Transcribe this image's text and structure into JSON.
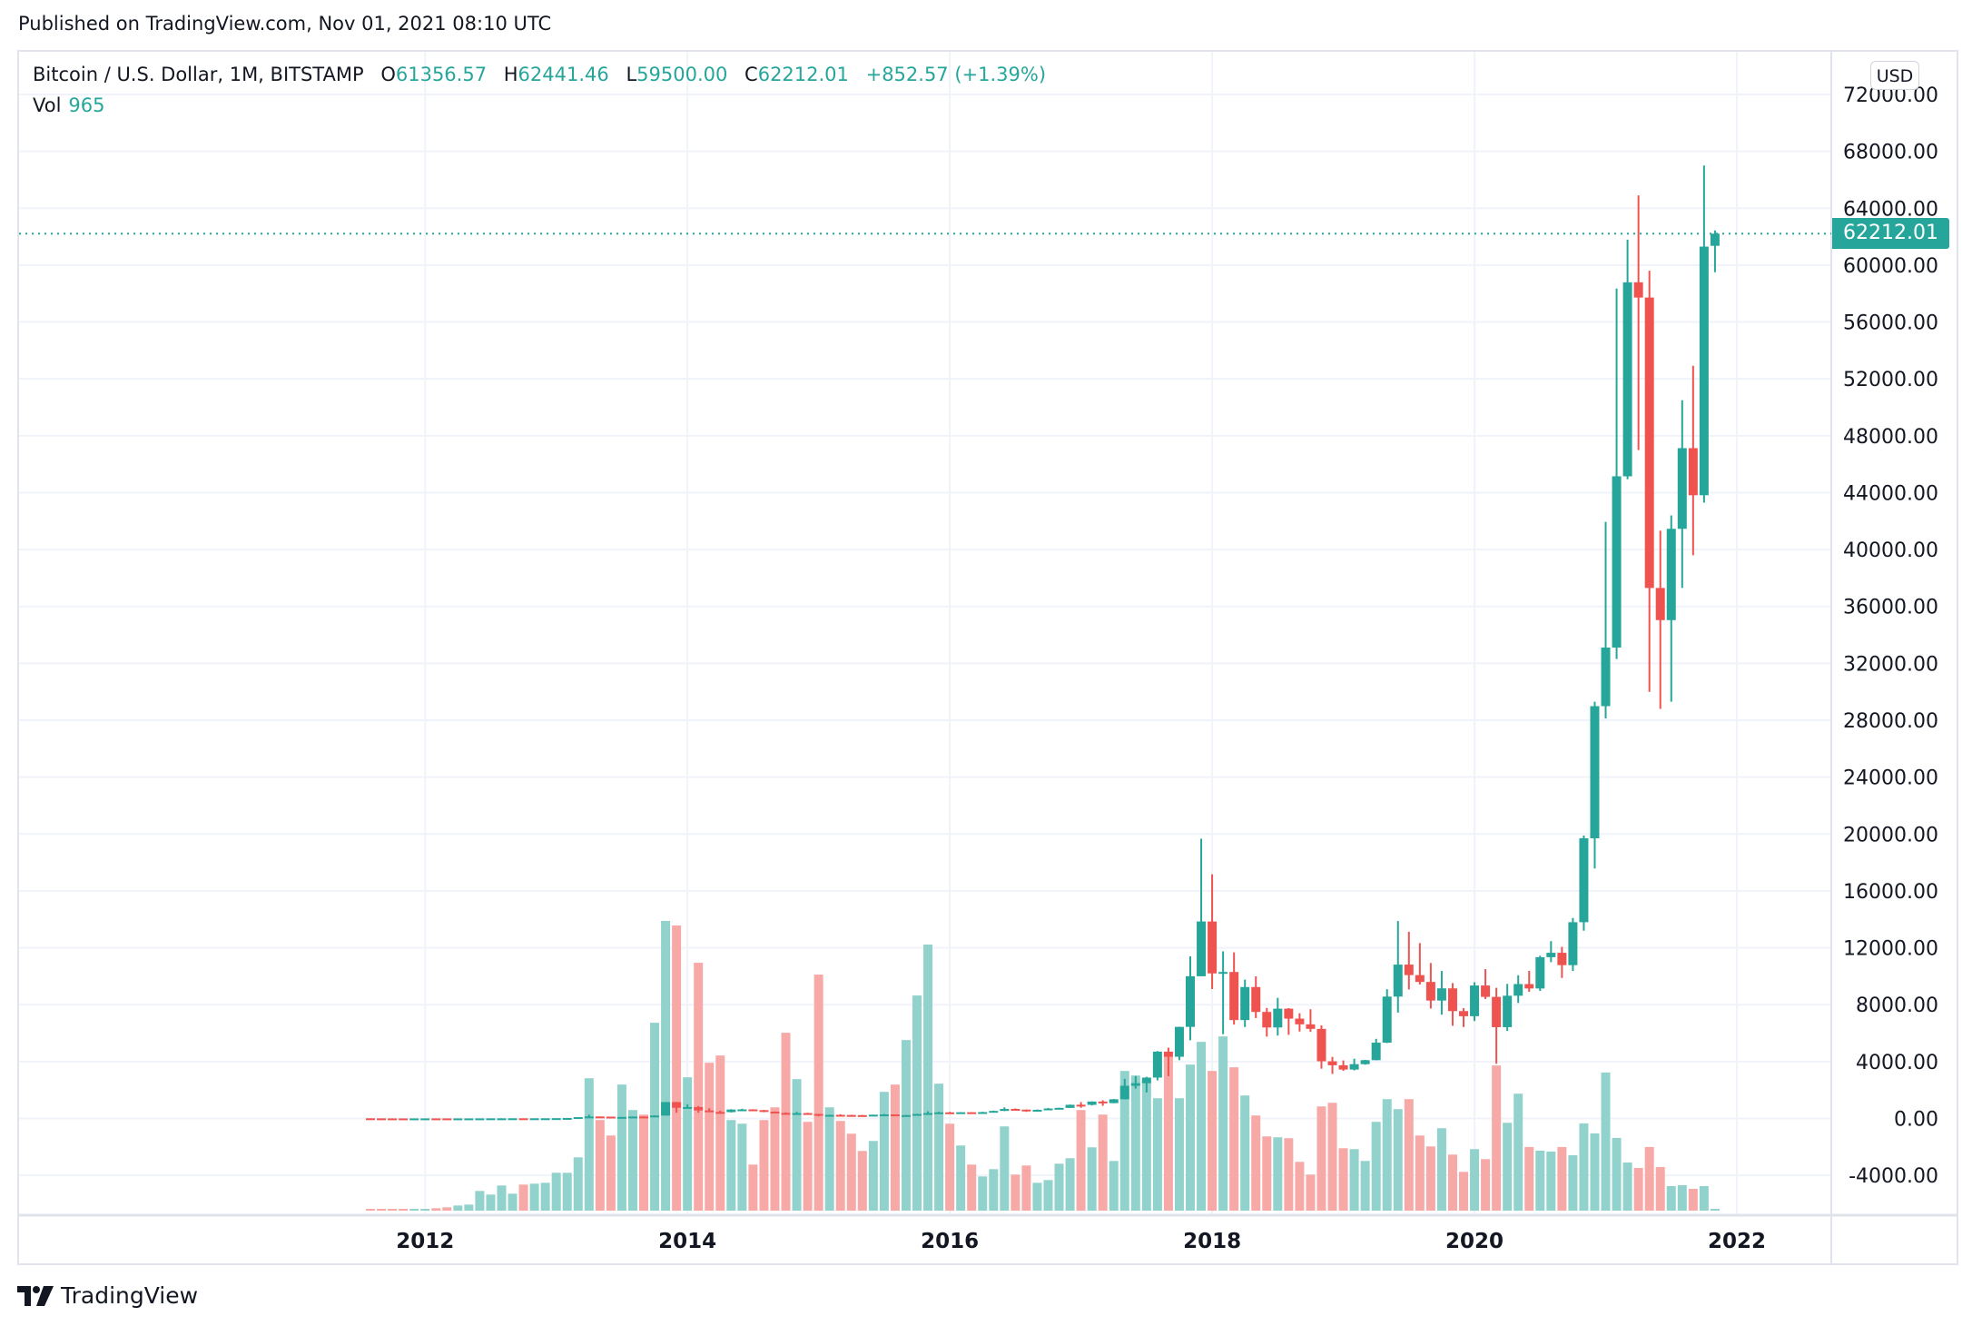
{
  "header": {
    "published": "Published on TradingView.com, Nov 01, 2021 08:10 UTC"
  },
  "legend": {
    "symbol": "Bitcoin / U.S. Dollar, 1M, BITSTAMP",
    "o_label": "O",
    "o": "61356.57",
    "h_label": "H",
    "h": "62441.46",
    "l_label": "L",
    "l": "59500.00",
    "c_label": "C",
    "c": "62212.01",
    "change": "+852.57 (+1.39%)",
    "vol_label": "Vol",
    "vol": "965"
  },
  "currency_button": "USD",
  "last_price_tag": "62212.01",
  "brand": "TradingView",
  "colors": {
    "up": "#26a69a",
    "down": "#ef5350",
    "up_volume": "#92d2cc",
    "down_volume": "#f7a9a7",
    "grid": "#f0f3fa"
  },
  "chart_data": {
    "type": "candlestick",
    "interval": "1M",
    "y_ticks": [
      "-4000.00",
      "0.00",
      "4000.00",
      "8000.00",
      "12000.00",
      "16000.00",
      "20000.00",
      "24000.00",
      "28000.00",
      "32000.00",
      "36000.00",
      "40000.00",
      "44000.00",
      "48000.00",
      "52000.00",
      "56000.00",
      "60000.00",
      "64000.00",
      "68000.00",
      "72000.00"
    ],
    "ylim": [
      -5000,
      72000
    ],
    "x_ticks": [
      "2012",
      "2014",
      "2016",
      "2018",
      "2020",
      "2022"
    ],
    "grid": true,
    "last_price": 62212.01,
    "candles": [
      [
        "2011-08",
        13.5,
        13.9,
        7.5,
        8.2,
        800
      ],
      [
        "2011-09",
        8.2,
        8.5,
        4.6,
        5.1,
        800
      ],
      [
        "2011-10",
        5.1,
        5.2,
        2.3,
        3.3,
        800
      ],
      [
        "2011-11",
        3.3,
        3.8,
        2.0,
        3.0,
        800
      ],
      [
        "2011-12",
        3.0,
        4.8,
        2.9,
        4.7,
        800
      ],
      [
        "2012-01",
        4.7,
        7.4,
        4.6,
        5.5,
        800
      ],
      [
        "2012-02",
        5.5,
        6.2,
        3.9,
        4.95,
        1280
      ],
      [
        "2012-03",
        4.95,
        5.4,
        4.6,
        4.88,
        1760
      ],
      [
        "2012-04",
        4.88,
        5.3,
        4.8,
        5.0,
        2720
      ],
      [
        "2012-05",
        5.0,
        5.3,
        4.9,
        5.2,
        3200
      ],
      [
        "2012-06",
        5.2,
        6.7,
        5.2,
        6.6,
        10400
      ],
      [
        "2012-07",
        6.6,
        9.6,
        6.5,
        9.3,
        8480
      ],
      [
        "2012-08",
        9.3,
        15.4,
        7.1,
        10.2,
        13280
      ],
      [
        "2012-09",
        10.2,
        12.9,
        9.9,
        12.4,
        8960
      ],
      [
        "2012-10",
        12.4,
        12.9,
        9.9,
        11.2,
        13760
      ],
      [
        "2012-11",
        11.2,
        12.6,
        10.2,
        12.6,
        14240
      ],
      [
        "2012-12",
        12.6,
        14.0,
        12.4,
        13.5,
        14720
      ],
      [
        "2013-01",
        13.5,
        21.0,
        13.1,
        20.4,
        20000
      ],
      [
        "2013-02",
        20.4,
        33.8,
        19.5,
        33.4,
        20000
      ],
      [
        "2013-03",
        33.4,
        94.7,
        33.0,
        93.0,
        28160
      ],
      [
        "2013-04",
        93,
        266,
        50,
        139,
        69920
      ],
      [
        "2013-05",
        139,
        139.8,
        79,
        128,
        47840
      ],
      [
        "2013-06",
        128,
        129,
        87,
        97,
        39680
      ],
      [
        "2013-07",
        97,
        110,
        65,
        106,
        66560
      ],
      [
        "2013-08",
        106,
        135,
        101,
        134,
        53120
      ],
      [
        "2013-09",
        134,
        145,
        110,
        130,
        50720
      ],
      [
        "2013-10",
        130,
        220,
        107,
        205,
        99200
      ],
      [
        "2013-11",
        205,
        1163,
        197,
        1150,
        152960
      ],
      [
        "2013-12",
        1150,
        1163,
        400,
        754,
        150560
      ],
      [
        "2014-01",
        754,
        1000,
        740,
        803,
        70400
      ],
      [
        "2014-02",
        803,
        875,
        400,
        565,
        130880
      ],
      [
        "2014-03",
        565,
        720,
        440,
        457,
        78080
      ],
      [
        "2014-04",
        457,
        550,
        340,
        447,
        81920
      ],
      [
        "2014-05",
        447,
        650,
        420,
        627,
        47840
      ],
      [
        "2014-06",
        627,
        680,
        550,
        638,
        45920
      ],
      [
        "2014-07",
        638,
        650,
        560,
        585,
        24320
      ],
      [
        "2014-08",
        585,
        600,
        440,
        480,
        47840
      ],
      [
        "2014-09",
        480,
        490,
        360,
        387,
        54560
      ],
      [
        "2014-10",
        387,
        425,
        275,
        338,
        93920
      ],
      [
        "2014-11",
        338,
        460,
        318,
        378,
        69440
      ],
      [
        "2014-12",
        378,
        400,
        310,
        318,
        46880
      ],
      [
        "2015-01",
        318,
        320,
        152,
        217,
        124640
      ],
      [
        "2015-02",
        217,
        268,
        215,
        254,
        54560
      ],
      [
        "2015-03",
        254,
        300,
        235,
        244,
        47360
      ],
      [
        "2015-04",
        244,
        262,
        214,
        236,
        40640
      ],
      [
        "2015-05",
        236,
        248,
        225,
        230,
        31520
      ],
      [
        "2015-06",
        230,
        268,
        220,
        264,
        36800
      ],
      [
        "2015-07",
        264,
        318,
        250,
        284,
        62720
      ],
      [
        "2015-08",
        284,
        285,
        162,
        230,
        66560
      ],
      [
        "2015-09",
        230,
        248,
        225,
        236,
        90080
      ],
      [
        "2015-10",
        236,
        330,
        235,
        314,
        113600
      ],
      [
        "2015-11",
        314,
        502,
        300,
        378,
        140480
      ],
      [
        "2015-12",
        378,
        470,
        347,
        430,
        67040
      ],
      [
        "2016-01",
        430,
        464,
        354,
        369,
        45920
      ],
      [
        "2016-02",
        369,
        445,
        365,
        437,
        34400
      ],
      [
        "2016-03",
        437,
        439,
        392,
        416,
        24320
      ],
      [
        "2016-04",
        416,
        469,
        413,
        448,
        18080
      ],
      [
        "2016-05",
        448,
        550,
        435,
        531,
        21920
      ],
      [
        "2016-06",
        531,
        780,
        520,
        671,
        44480
      ],
      [
        "2016-07",
        671,
        704,
        605,
        624,
        19040
      ],
      [
        "2016-08",
        624,
        626,
        465,
        575,
        23840
      ],
      [
        "2016-09",
        575,
        630,
        565,
        609,
        14720
      ],
      [
        "2016-10",
        609,
        740,
        603,
        700,
        16160
      ],
      [
        "2016-11",
        700,
        755,
        680,
        745,
        24800
      ],
      [
        "2016-12",
        745,
        975,
        740,
        963,
        27680
      ],
      [
        "2017-01",
        966,
        1150,
        752,
        960,
        53120
      ],
      [
        "2017-02",
        960,
        1200,
        915,
        1190,
        33440
      ],
      [
        "2017-03",
        1190,
        1280,
        890,
        1080,
        50720
      ],
      [
        "2017-04",
        1080,
        1370,
        1075,
        1350,
        26240
      ],
      [
        "2017-05",
        1350,
        2790,
        1340,
        2300,
        73760
      ],
      [
        "2017-06",
        2300,
        2980,
        2100,
        2480,
        71360
      ],
      [
        "2017-07",
        2480,
        2930,
        1830,
        2875,
        68480
      ],
      [
        "2017-08",
        2875,
        4740,
        2675,
        4700,
        59360
      ],
      [
        "2017-09",
        4700,
        4980,
        2970,
        4340,
        81280
      ],
      [
        "2017-10",
        4340,
        6450,
        4100,
        6440,
        59360
      ],
      [
        "2017-11",
        6440,
        11400,
        5500,
        10000,
        77120
      ],
      [
        "2017-12",
        10000,
        19666,
        10000,
        13850,
        89120
      ],
      [
        "2018-01",
        13850,
        17170,
        9100,
        10200,
        73760
      ],
      [
        "2018-02",
        10200,
        11750,
        5920,
        10300,
        92000
      ],
      [
        "2018-03",
        10300,
        11680,
        6600,
        6920,
        75680
      ],
      [
        "2018-04",
        6920,
        9760,
        6430,
        9240,
        60800
      ],
      [
        "2018-05",
        9240,
        9990,
        7060,
        7490,
        50240
      ],
      [
        "2018-06",
        7490,
        7770,
        5760,
        6400,
        39200
      ],
      [
        "2018-07",
        6400,
        8480,
        5830,
        7720,
        38720
      ],
      [
        "2018-08",
        7720,
        7760,
        5880,
        7020,
        38240
      ],
      [
        "2018-09",
        7020,
        7400,
        6110,
        6620,
        25760
      ],
      [
        "2018-10",
        6620,
        7680,
        6090,
        6300,
        19040
      ],
      [
        "2018-11",
        6300,
        6550,
        3500,
        4020,
        55040
      ],
      [
        "2018-12",
        4020,
        4330,
        3130,
        3740,
        56960
      ],
      [
        "2019-01",
        3740,
        4080,
        3350,
        3440,
        32960
      ],
      [
        "2019-02",
        3440,
        4200,
        3380,
        3820,
        32480
      ],
      [
        "2019-03",
        3820,
        4120,
        3780,
        4100,
        26240
      ],
      [
        "2019-04",
        4100,
        5600,
        4090,
        5330,
        46880
      ],
      [
        "2019-05",
        5330,
        9090,
        5300,
        8570,
        58880
      ],
      [
        "2019-06",
        8570,
        13880,
        7450,
        10820,
        53600
      ],
      [
        "2019-07",
        10820,
        13130,
        9070,
        10080,
        58880
      ],
      [
        "2019-08",
        10080,
        12330,
        9420,
        9600,
        39680
      ],
      [
        "2019-09",
        9600,
        10930,
        7730,
        8290,
        33920
      ],
      [
        "2019-10",
        8290,
        10370,
        7300,
        9150,
        43520
      ],
      [
        "2019-11",
        9150,
        9520,
        6520,
        7550,
        29600
      ],
      [
        "2019-12",
        7550,
        7750,
        6430,
        7190,
        20480
      ],
      [
        "2020-01",
        7190,
        9580,
        6850,
        9350,
        32480
      ],
      [
        "2020-02",
        9350,
        10500,
        8400,
        8550,
        27200
      ],
      [
        "2020-03",
        8550,
        9190,
        3850,
        6420,
        76640
      ],
      [
        "2020-04",
        6420,
        9460,
        6150,
        8630,
        46400
      ],
      [
        "2020-05",
        8630,
        10070,
        8120,
        9450,
        61760
      ],
      [
        "2020-06",
        9450,
        10380,
        8900,
        9140,
        33600
      ],
      [
        "2020-07",
        9140,
        11440,
        8970,
        11340,
        31680
      ],
      [
        "2020-08",
        11340,
        12470,
        10990,
        11650,
        31200
      ],
      [
        "2020-09",
        11650,
        12070,
        9880,
        10780,
        33600
      ],
      [
        "2020-10",
        10780,
        14100,
        10370,
        13800,
        29280
      ],
      [
        "2020-11",
        13800,
        19890,
        13200,
        19700,
        46080
      ],
      [
        "2020-12",
        19700,
        29300,
        17580,
        28990,
        40800
      ],
      [
        "2021-01",
        28990,
        41950,
        28130,
        33110,
        72960
      ],
      [
        "2021-02",
        33110,
        58350,
        32300,
        45150,
        38400
      ],
      [
        "2021-03",
        45150,
        61790,
        44950,
        58790,
        25440
      ],
      [
        "2021-04",
        58790,
        64900,
        47000,
        57720,
        22560
      ],
      [
        "2021-05",
        57720,
        59600,
        30000,
        37300,
        33600
      ],
      [
        "2021-06",
        37300,
        41330,
        28800,
        35040,
        23040
      ],
      [
        "2021-07",
        35040,
        42400,
        29300,
        41460,
        12960
      ],
      [
        "2021-08",
        41460,
        50500,
        37300,
        47130,
        13440
      ],
      [
        "2021-09",
        47130,
        52920,
        39600,
        43820,
        11520
      ],
      [
        "2021-10",
        43820,
        67000,
        43300,
        61300,
        12960
      ],
      [
        "2021-11",
        61356.57,
        62441.46,
        59500,
        62212.01,
        965
      ]
    ]
  }
}
